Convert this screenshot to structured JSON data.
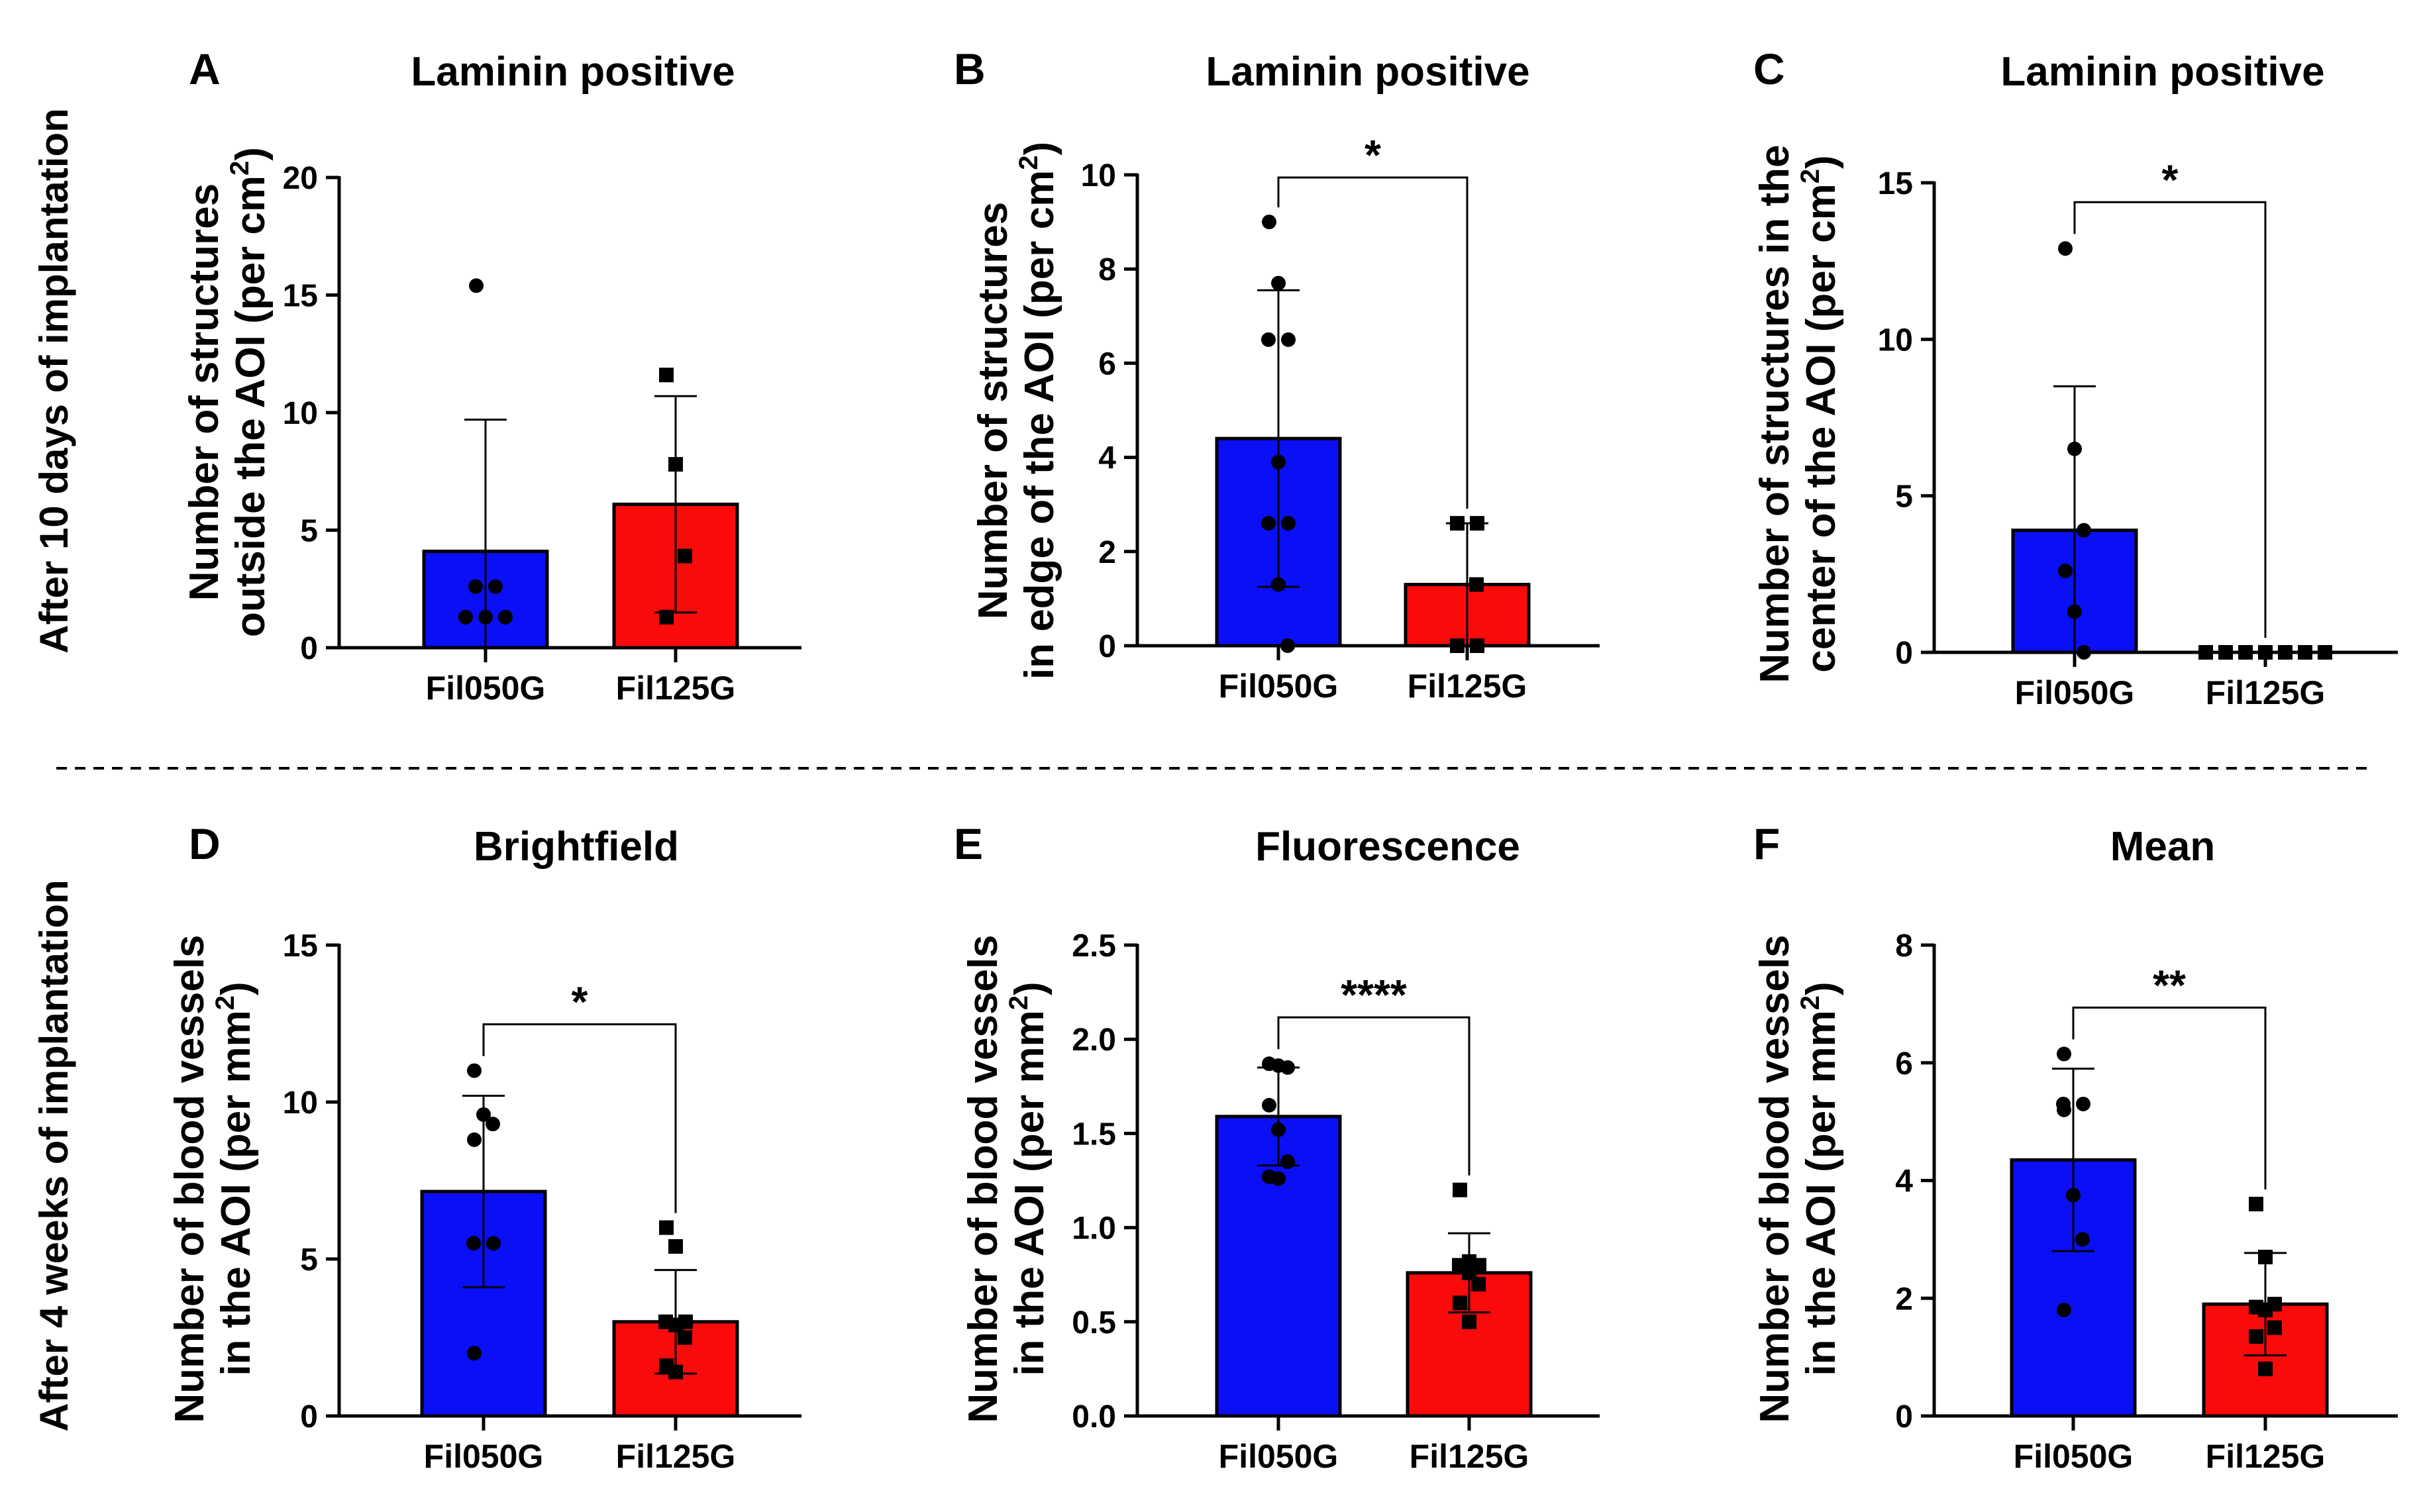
{
  "row_labels": [
    "After 10 days of implantation",
    "After 4 weeks of implantation"
  ],
  "colors": {
    "Fil050G": "#0a0ff5",
    "Fil125G": "#fa0a0a"
  },
  "chart_data": [
    {
      "type": "bar",
      "panel": "A",
      "title": "Laminin positive",
      "ylabel": "Number of structures",
      "ylabel2_prefix": "outside the AOI (per cm",
      "ylabel2_sup": "2",
      "ylabel2_suffix": ")",
      "ylim": [
        0,
        20
      ],
      "yticks": [
        0,
        5,
        10,
        15,
        20
      ],
      "ytick_labels": [
        "0",
        "5",
        "10",
        "15",
        "20"
      ],
      "categories": [
        "Fil050G",
        "Fil125G"
      ],
      "values": [
        4.1,
        6.1
      ],
      "sd": [
        5.6,
        4.6
      ],
      "points": [
        [
          15.4,
          2.6,
          2.6,
          1.3,
          1.3,
          1.3
        ],
        [
          11.6,
          7.8,
          3.9,
          1.3
        ]
      ],
      "significance": ""
    },
    {
      "type": "bar",
      "panel": "B",
      "title": "Laminin positive",
      "ylabel": "Number of structures",
      "ylabel2_prefix": "in edge of the AOI (per cm",
      "ylabel2_sup": "2",
      "ylabel2_suffix": ")",
      "ylim": [
        0,
        10
      ],
      "yticks": [
        0,
        2,
        4,
        6,
        8,
        10
      ],
      "ytick_labels": [
        "0",
        "2",
        "4",
        "6",
        "8",
        "10"
      ],
      "categories": [
        "Fil050G",
        "Fil125G"
      ],
      "values": [
        4.4,
        1.3
      ],
      "sd": [
        3.15,
        1.3
      ],
      "points": [
        [
          9.0,
          7.7,
          6.5,
          6.5,
          3.9,
          2.6,
          2.6,
          1.3,
          0.0
        ],
        [
          2.6,
          2.6,
          1.3,
          0.0,
          0.0
        ]
      ],
      "significance": "*"
    },
    {
      "type": "bar",
      "panel": "C",
      "title": "Laminin positive",
      "ylabel": "Number of structures in the",
      "ylabel2_prefix": "center of the AOI (per cm",
      "ylabel2_sup": "2",
      "ylabel2_suffix": ")",
      "ylim": [
        0,
        15
      ],
      "yticks": [
        0,
        5,
        10,
        15
      ],
      "ytick_labels": [
        "0",
        "5",
        "10",
        "15"
      ],
      "categories": [
        "Fil050G",
        "Fil125G"
      ],
      "values": [
        3.9,
        0.0
      ],
      "sd": [
        4.6,
        0.0
      ],
      "points": [
        [
          12.9,
          6.5,
          3.9,
          2.6,
          1.3,
          0.0
        ],
        [
          0,
          0,
          0,
          0,
          0,
          0,
          0
        ]
      ],
      "significance": "*"
    },
    {
      "type": "bar",
      "panel": "D",
      "title": "Brightfield",
      "ylabel": "Number of blood vessels",
      "ylabel2_prefix": "in the AOI (per mm",
      "ylabel2_sup": "2",
      "ylabel2_suffix": ")",
      "ylim": [
        0,
        15
      ],
      "yticks": [
        0,
        5,
        10,
        15
      ],
      "ytick_labels": [
        "0",
        "5",
        "10",
        "15"
      ],
      "categories": [
        "Fil050G",
        "Fil125G"
      ],
      "values": [
        7.15,
        3.0
      ],
      "sd": [
        3.05,
        1.65
      ],
      "points": [
        [
          11.0,
          9.6,
          9.3,
          8.8,
          5.5,
          5.5,
          2.0
        ],
        [
          6.0,
          5.4,
          3.0,
          3.0,
          2.9,
          2.5,
          1.6,
          1.4
        ]
      ],
      "significance": "*"
    },
    {
      "type": "bar",
      "panel": "E",
      "title": "Fluorescence",
      "ylabel": "Number of blood vessels",
      "ylabel2_prefix": "in the AOI (per mm",
      "ylabel2_sup": "2",
      "ylabel2_suffix": ")",
      "ylim": [
        0,
        2.5
      ],
      "yticks": [
        0,
        0.5,
        1.0,
        1.5,
        2.0,
        2.5
      ],
      "ytick_labels": [
        "0.0",
        "0.5",
        "1.0",
        "1.5",
        "2.0",
        "2.5"
      ],
      "categories": [
        "Fil050G",
        "Fil125G"
      ],
      "values": [
        1.59,
        0.76
      ],
      "sd": [
        0.26,
        0.21
      ],
      "points": [
        [
          1.87,
          1.86,
          1.85,
          1.65,
          1.52,
          1.35,
          1.27,
          1.26
        ],
        [
          1.2,
          0.82,
          0.8,
          0.8,
          0.76,
          0.7,
          0.6,
          0.5
        ]
      ],
      "significance": "****"
    },
    {
      "type": "bar",
      "panel": "F",
      "title": "Mean",
      "ylabel": "Number of blood vessels",
      "ylabel2_prefix": "in the AOI (per mm",
      "ylabel2_sup": "2",
      "ylabel2_suffix": ")",
      "ylim": [
        0,
        8
      ],
      "yticks": [
        0,
        2,
        4,
        6,
        8
      ],
      "ytick_labels": [
        "0",
        "2",
        "4",
        "6",
        "8"
      ],
      "categories": [
        "Fil050G",
        "Fil125G"
      ],
      "values": [
        4.35,
        1.9
      ],
      "sd": [
        1.55,
        0.87
      ],
      "points": [
        [
          6.15,
          5.3,
          5.3,
          5.2,
          3.75,
          3.0,
          1.8
        ],
        [
          3.6,
          2.7,
          1.9,
          1.85,
          1.8,
          1.5,
          1.35,
          0.8
        ]
      ],
      "significance": "**"
    }
  ]
}
